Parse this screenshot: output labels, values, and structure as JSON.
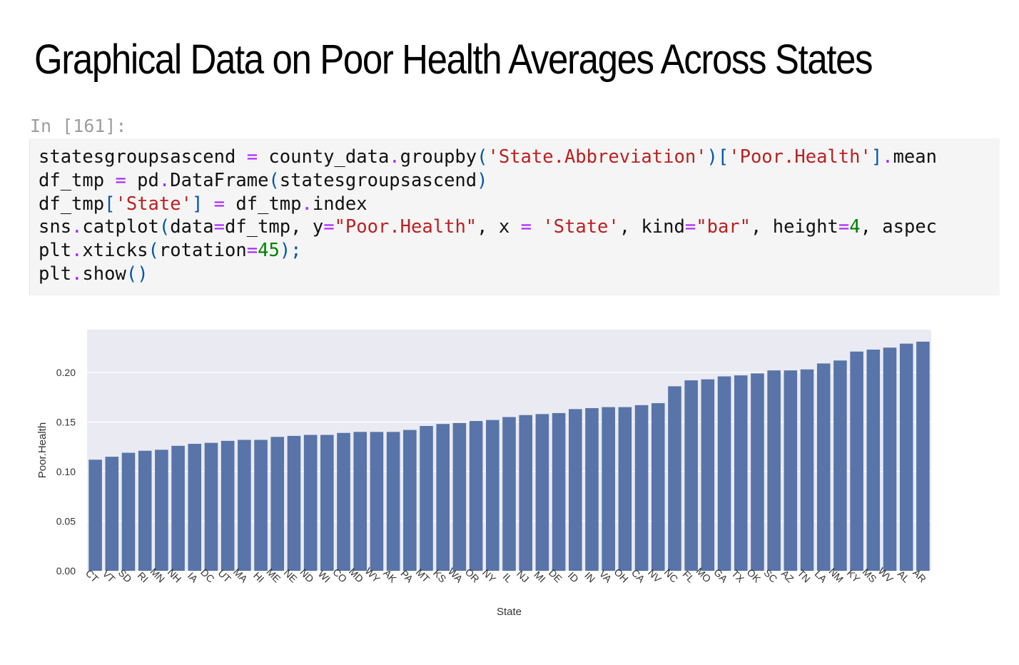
{
  "title": "Graphical Data on Poor Health Averages Across States",
  "cell": {
    "prompt": "In [161]:",
    "code_lines": [
      [
        [
          "statesgroupsascend ",
          ""
        ],
        [
          "=",
          "op"
        ],
        [
          " county_data",
          ""
        ],
        [
          ".",
          "op"
        ],
        [
          "groupby",
          ""
        ],
        [
          "(",
          "br"
        ],
        [
          "'State.Abbreviation'",
          "str"
        ],
        [
          ")[",
          "br"
        ],
        [
          "'Poor.Health'",
          "str"
        ],
        [
          "]",
          "br"
        ],
        [
          ".",
          "op"
        ],
        [
          "mean",
          ""
        ]
      ],
      [
        [
          "df_tmp ",
          ""
        ],
        [
          "=",
          "op"
        ],
        [
          " pd",
          ""
        ],
        [
          ".",
          "op"
        ],
        [
          "DataFrame",
          ""
        ],
        [
          "(",
          "br"
        ],
        [
          "statesgroupsascend",
          ""
        ],
        [
          ")",
          "br"
        ]
      ],
      [
        [
          "df_tmp",
          ""
        ],
        [
          "[",
          "br"
        ],
        [
          "'State'",
          "str"
        ],
        [
          "]",
          "br"
        ],
        [
          " ",
          ""
        ],
        [
          "=",
          "op"
        ],
        [
          " df_tmp",
          ""
        ],
        [
          ".",
          "op"
        ],
        [
          "index",
          ""
        ]
      ],
      [
        [
          "sns",
          ""
        ],
        [
          ".",
          "op"
        ],
        [
          "catplot",
          ""
        ],
        [
          "(",
          "br"
        ],
        [
          "data",
          ""
        ],
        [
          "=",
          "op"
        ],
        [
          "df_tmp, y",
          ""
        ],
        [
          "=",
          "op"
        ],
        [
          "\"Poor.Health\"",
          "str"
        ],
        [
          ", x ",
          ""
        ],
        [
          "=",
          "op"
        ],
        [
          " ",
          ""
        ],
        [
          "'State'",
          "str"
        ],
        [
          ", kind",
          ""
        ],
        [
          "=",
          "op"
        ],
        [
          "\"bar\"",
          "str"
        ],
        [
          ", height",
          ""
        ],
        [
          "=",
          "op"
        ],
        [
          "4",
          "num"
        ],
        [
          ", aspec",
          ""
        ]
      ],
      [
        [
          "plt",
          ""
        ],
        [
          ".",
          "op"
        ],
        [
          "xticks",
          ""
        ],
        [
          "(",
          "br"
        ],
        [
          "rotation",
          ""
        ],
        [
          "=",
          "op"
        ],
        [
          "45",
          "num"
        ],
        [
          ");",
          "br"
        ]
      ],
      [
        [
          "plt",
          ""
        ],
        [
          ".",
          "op"
        ],
        [
          "show",
          ""
        ],
        [
          "()",
          "br"
        ]
      ]
    ]
  },
  "colors": {
    "bar": "#5874a8",
    "plot_bg": "#eaeaf2",
    "grid": "#ffffff",
    "text": "#333333"
  },
  "chart_data": {
    "type": "bar",
    "xlabel": "State",
    "ylabel": "Poor.Health",
    "ylim": [
      0,
      0.2431
    ],
    "yticks": [
      "0.00",
      "0.05",
      "0.10",
      "0.15",
      "0.20"
    ],
    "grid": true,
    "categories": [
      "CT",
      "VT",
      "SD",
      "RI",
      "MN",
      "NH",
      "IA",
      "DC",
      "UT",
      "MA",
      "HI",
      "ME",
      "NE",
      "ND",
      "WI",
      "CO",
      "MD",
      "WY",
      "AK",
      "PA",
      "MT",
      "KS",
      "WA",
      "OR",
      "NY",
      "IL",
      "NJ",
      "MI",
      "DE",
      "ID",
      "IN",
      "VA",
      "OH",
      "CA",
      "NV",
      "NC",
      "FL",
      "MO",
      "GA",
      "TX",
      "OK",
      "SC",
      "AZ",
      "TN",
      "LA",
      "NM",
      "KY",
      "MS",
      "WV",
      "AL",
      "AR"
    ],
    "values": [
      0.112,
      0.115,
      0.119,
      0.121,
      0.122,
      0.126,
      0.128,
      0.129,
      0.131,
      0.132,
      0.132,
      0.135,
      0.136,
      0.137,
      0.137,
      0.139,
      0.14,
      0.14,
      0.14,
      0.142,
      0.146,
      0.148,
      0.149,
      0.151,
      0.152,
      0.155,
      0.157,
      0.158,
      0.159,
      0.163,
      0.164,
      0.165,
      0.165,
      0.167,
      0.169,
      0.186,
      0.192,
      0.193,
      0.196,
      0.197,
      0.199,
      0.202,
      0.202,
      0.203,
      0.209,
      0.212,
      0.221,
      0.223,
      0.225,
      0.229,
      0.231
    ]
  }
}
